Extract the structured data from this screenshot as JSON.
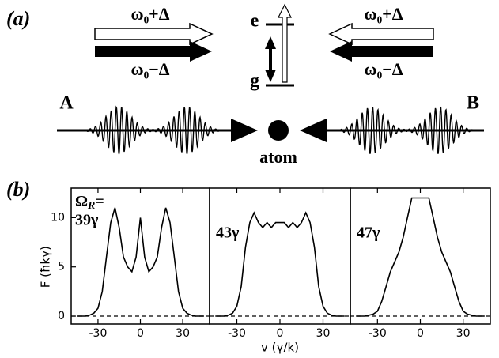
{
  "diagram": {
    "panel_a": "(a)",
    "panel_b": "(b)",
    "left_upper": "ω₀+Δ",
    "left_lower": "ω₀−Δ",
    "right_upper": "ω₀+Δ",
    "right_lower": "ω₀−Δ",
    "level_e": "e",
    "level_g": "g",
    "beam_a": "A",
    "beam_b": "B",
    "atom": "atom"
  },
  "chart_data": [
    {
      "type": "line",
      "ylabel": "F (ħkγ)",
      "label_prefix": "Ω",
      "label_subscript": "R",
      "label_suffix": "=",
      "annotation": "39γ",
      "x": [
        -45,
        -42,
        -39,
        -36,
        -33,
        -30,
        -27,
        -24,
        -21,
        -18,
        -15,
        -12,
        -9,
        -6,
        -3,
        0,
        3,
        6,
        9,
        12,
        15,
        18,
        21,
        24,
        27,
        30,
        33,
        36,
        39,
        42,
        45
      ],
      "values": [
        0,
        0,
        0,
        0.1,
        0.3,
        0.8,
        2.5,
        6,
        9.5,
        11,
        9,
        6,
        5,
        4.5,
        6,
        10,
        6,
        4.5,
        5,
        6,
        9,
        11,
        9.5,
        6,
        2.5,
        0.8,
        0.3,
        0.1,
        0,
        0,
        0
      ],
      "color": "#000000",
      "xlim": [
        -49,
        49
      ],
      "ylim": [
        -0.8,
        13
      ],
      "xticks": [
        -30,
        0,
        30
      ],
      "yticks": [
        0,
        5,
        10
      ],
      "zero_line": true
    },
    {
      "type": "line",
      "xlabel": "v (γ/k)",
      "annotation": "43γ",
      "x": [
        -45,
        -42,
        -39,
        -36,
        -33,
        -30,
        -27,
        -24,
        -21,
        -18,
        -15,
        -12,
        -9,
        -6,
        -3,
        0,
        3,
        6,
        9,
        12,
        15,
        18,
        21,
        24,
        27,
        30,
        33,
        36,
        39,
        42,
        45
      ],
      "values": [
        0,
        0,
        0,
        0.1,
        0.3,
        1,
        3,
        7,
        9.5,
        10.5,
        9.5,
        9,
        9.5,
        9,
        9.5,
        9.5,
        9.5,
        9,
        9.5,
        9,
        9.5,
        10.5,
        9.5,
        7,
        3,
        1,
        0.3,
        0.1,
        0,
        0,
        0
      ],
      "color": "#000000",
      "xlim": [
        -49,
        49
      ],
      "ylim": [
        -0.8,
        13
      ],
      "xticks": [
        -30,
        0,
        30
      ],
      "zero_line": true
    },
    {
      "type": "line",
      "annotation": "47γ",
      "x": [
        -45,
        -42,
        -39,
        -36,
        -33,
        -30,
        -27,
        -24,
        -21,
        -18,
        -15,
        -12,
        -9,
        -6,
        -3,
        0,
        3,
        6,
        9,
        12,
        15,
        18,
        21,
        24,
        27,
        30,
        33,
        36,
        39,
        42,
        45
      ],
      "values": [
        0,
        0,
        0,
        0.1,
        0.2,
        0.5,
        1.5,
        3,
        4.5,
        5.5,
        6.5,
        8,
        10,
        12,
        12,
        12,
        12,
        12,
        10,
        8,
        6.5,
        5.5,
        4.5,
        3,
        1.5,
        0.5,
        0.2,
        0.1,
        0,
        0,
        0
      ],
      "color": "#000000",
      "xlim": [
        -49,
        49
      ],
      "ylim": [
        -0.8,
        13
      ],
      "xticks": [
        -30,
        0,
        30
      ],
      "zero_line": true
    }
  ]
}
